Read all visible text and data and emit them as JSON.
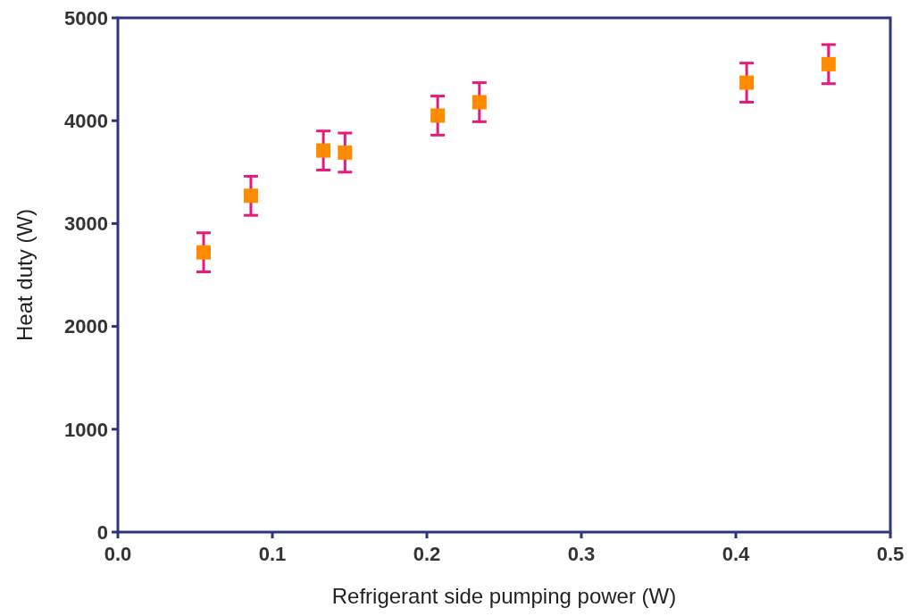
{
  "chart_data": {
    "type": "scatter",
    "xlabel": "Refrigerant side pumping power (W)",
    "ylabel": "Heat duty (W)",
    "x": [
      0.0555,
      0.0861,
      0.133,
      0.147,
      0.207,
      0.234,
      0.407,
      0.46
    ],
    "series": [
      {
        "color": "#ff8c00",
        "values": [
          2720,
          3270,
          3710,
          3690,
          4050,
          4180,
          4370,
          4550
        ],
        "errors": [
          190,
          190,
          190,
          190,
          190,
          190,
          190,
          190
        ]
      }
    ],
    "xlim": [
      0,
      0.5
    ],
    "xticks": [
      {
        "value": 0,
        "label": "0.0"
      },
      0.1,
      0.2,
      0.3,
      0.4,
      0.5
    ],
    "ylim": [
      0,
      5000
    ],
    "yticks": [
      0,
      1000,
      2000,
      3000,
      4000,
      5000
    ],
    "marker": "square",
    "grid": false
  }
}
